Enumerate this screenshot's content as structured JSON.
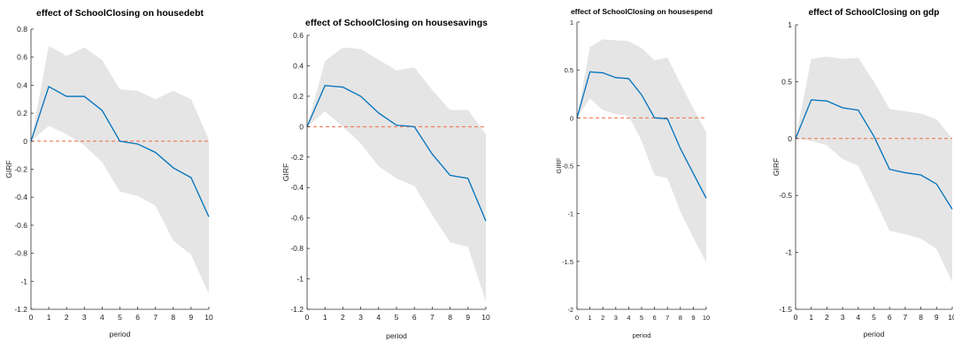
{
  "chart_data": [
    {
      "type": "line",
      "title": "effect of SchoolClosing on housedebt",
      "xlabel": "period",
      "ylabel": "GIRF",
      "xlim": [
        0,
        10
      ],
      "ylim": [
        -1.2,
        0.8
      ],
      "xticks": [
        "0",
        "1",
        "2",
        "3",
        "4",
        "5",
        "6",
        "7",
        "8",
        "9",
        "10"
      ],
      "yticks": [
        {
          "v": 0.8,
          "label": "0.8"
        },
        {
          "v": 0.6,
          "label": "0.6"
        },
        {
          "v": 0.4,
          "label": "0.4"
        },
        {
          "v": 0.2,
          "label": "0.2"
        },
        {
          "v": 0,
          "label": "0"
        },
        {
          "v": -0.2,
          "label": "-0.2"
        },
        {
          "v": -0.4,
          "label": "-0.4"
        },
        {
          "v": -0.6,
          "label": "-0.6"
        },
        {
          "v": -0.8,
          "label": "-0.8"
        },
        {
          "v": -1,
          "label": "-1"
        },
        {
          "v": -1.2,
          "label": "-1.2"
        }
      ],
      "x": [
        0,
        1,
        2,
        3,
        4,
        5,
        6,
        7,
        8,
        9,
        10
      ],
      "series": [
        {
          "role": "girf",
          "values": [
            0,
            0.39,
            0.32,
            0.32,
            0.22,
            0.0,
            -0.02,
            -0.08,
            -0.19,
            -0.26,
            -0.54
          ]
        },
        {
          "role": "upper",
          "values": [
            0,
            0.68,
            0.61,
            0.67,
            0.58,
            0.37,
            0.36,
            0.3,
            0.36,
            0.3,
            0.01
          ]
        },
        {
          "role": "lower",
          "values": [
            0,
            0.11,
            0.05,
            -0.03,
            -0.15,
            -0.36,
            -0.39,
            -0.46,
            -0.71,
            -0.81,
            -1.09
          ]
        }
      ],
      "colors": {
        "line": "#0072BD",
        "band": "#e5e5e5",
        "zero": "#F26B43"
      }
    },
    {
      "type": "line",
      "title": "effect of SchoolClosing on housesavings",
      "xlabel": "period",
      "ylabel": "GIRF",
      "xlim": [
        0,
        10
      ],
      "ylim": [
        -1.2,
        0.6
      ],
      "xticks": [
        "0",
        "1",
        "2",
        "3",
        "4",
        "5",
        "6",
        "7",
        "8",
        "9",
        "10"
      ],
      "yticks": [
        {
          "v": 0.6,
          "label": "0.6"
        },
        {
          "v": 0.4,
          "label": "0.4"
        },
        {
          "v": 0.2,
          "label": "0.2"
        },
        {
          "v": 0,
          "label": "0"
        },
        {
          "v": -0.2,
          "label": "-0.2"
        },
        {
          "v": -0.4,
          "label": "-0.4"
        },
        {
          "v": -0.6,
          "label": "-0.6"
        },
        {
          "v": -0.8,
          "label": "-0.8"
        },
        {
          "v": -1,
          "label": "-1"
        },
        {
          "v": -1.2,
          "label": "-1.2"
        }
      ],
      "x": [
        0,
        1,
        2,
        3,
        4,
        5,
        6,
        7,
        8,
        9,
        10
      ],
      "series": [
        {
          "role": "girf",
          "values": [
            0,
            0.27,
            0.26,
            0.2,
            0.09,
            0.01,
            0.0,
            -0.18,
            -0.32,
            -0.34,
            -0.62
          ]
        },
        {
          "role": "upper",
          "values": [
            0,
            0.43,
            0.52,
            0.51,
            0.44,
            0.37,
            0.39,
            0.24,
            0.11,
            0.11,
            -0.05
          ]
        },
        {
          "role": "lower",
          "values": [
            0,
            0.1,
            0.0,
            -0.11,
            -0.26,
            -0.34,
            -0.39,
            -0.58,
            -0.76,
            -0.79,
            -1.15
          ]
        }
      ],
      "colors": {
        "line": "#0072BD",
        "band": "#e5e5e5",
        "zero": "#F26B43"
      }
    },
    {
      "type": "line",
      "title": "effect of SchoolClosing on housespend",
      "xlabel": "period",
      "ylabel": "GIRF",
      "xlim": [
        0,
        10
      ],
      "ylim": [
        -2,
        1
      ],
      "xticks": [
        "0",
        "1",
        "2",
        "3",
        "4",
        "5",
        "6",
        "7",
        "8",
        "9",
        "10"
      ],
      "yticks": [
        {
          "v": 1,
          "label": "1"
        },
        {
          "v": 0.5,
          "label": "0.5"
        },
        {
          "v": 0,
          "label": "0"
        },
        {
          "v": -0.5,
          "label": "-0.5"
        },
        {
          "v": -1,
          "label": "-1"
        },
        {
          "v": -1.5,
          "label": "-1.5"
        },
        {
          "v": -2,
          "label": "-2"
        }
      ],
      "x": [
        0,
        1,
        2,
        3,
        4,
        5,
        6,
        7,
        8,
        9,
        10
      ],
      "series": [
        {
          "role": "girf",
          "values": [
            0,
            0.48,
            0.47,
            0.42,
            0.41,
            0.24,
            0.0,
            -0.01,
            -0.32,
            -0.58,
            -0.84
          ]
        },
        {
          "role": "upper",
          "values": [
            0,
            0.74,
            0.82,
            0.81,
            0.8,
            0.73,
            0.6,
            0.63,
            0.36,
            0.1,
            -0.15
          ]
        },
        {
          "role": "lower",
          "values": [
            0,
            0.2,
            0.08,
            0.04,
            0.02,
            -0.24,
            -0.6,
            -0.63,
            -0.98,
            -1.25,
            -1.51
          ]
        }
      ],
      "colors": {
        "line": "#0072BD",
        "band": "#e5e5e5",
        "zero": "#F26B43"
      }
    },
    {
      "type": "line",
      "title": "effect of SchoolClosing on gdp",
      "xlabel": "period",
      "ylabel": "GIRF",
      "xlim": [
        0,
        10
      ],
      "ylim": [
        -1.5,
        1
      ],
      "xticks": [
        "0",
        "1",
        "2",
        "3",
        "4",
        "5",
        "6",
        "7",
        "8",
        "9",
        "10"
      ],
      "yticks": [
        {
          "v": 1,
          "label": "1"
        },
        {
          "v": 0.5,
          "label": "0.5"
        },
        {
          "v": 0,
          "label": "0"
        },
        {
          "v": -0.5,
          "label": "-0.5"
        },
        {
          "v": -1,
          "label": "-1"
        },
        {
          "v": -1.5,
          "label": "-1.5"
        }
      ],
      "x": [
        0,
        1,
        2,
        3,
        4,
        5,
        6,
        7,
        8,
        9,
        10
      ],
      "series": [
        {
          "role": "girf",
          "values": [
            0,
            0.34,
            0.33,
            0.27,
            0.25,
            0.02,
            -0.27,
            -0.3,
            -0.32,
            -0.4,
            -0.62
          ]
        },
        {
          "role": "upper",
          "values": [
            0,
            0.7,
            0.72,
            0.7,
            0.71,
            0.5,
            0.26,
            0.24,
            0.22,
            0.17,
            0.0
          ]
        },
        {
          "role": "lower",
          "values": [
            0,
            -0.02,
            -0.06,
            -0.18,
            -0.24,
            -0.52,
            -0.81,
            -0.84,
            -0.88,
            -0.97,
            -1.26
          ]
        }
      ],
      "colors": {
        "line": "#0072BD",
        "band": "#e5e5e5",
        "zero": "#F26B43"
      }
    }
  ]
}
